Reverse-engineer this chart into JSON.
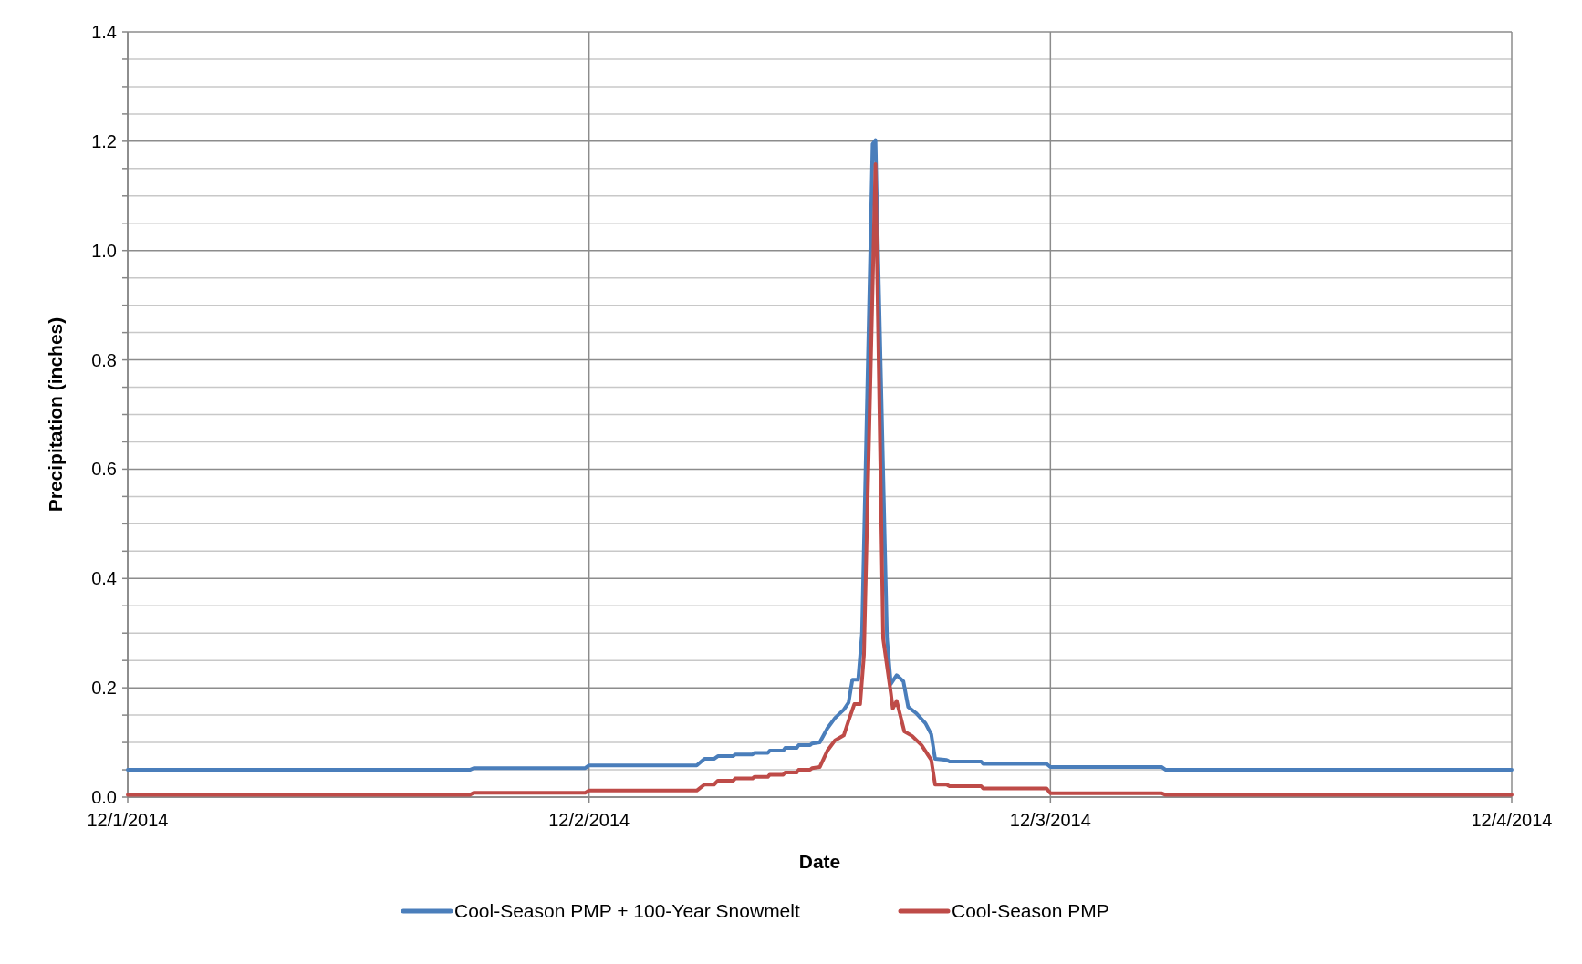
{
  "chart_data": {
    "type": "line",
    "xlabel": "Date",
    "ylabel": "Precipitation (inches)",
    "xlim": [
      "2014-12-01",
      "2014-12-04"
    ],
    "xticks": [
      {
        "value": "2014-12-01",
        "label": "12/1/2014"
      },
      {
        "value": "2014-12-02",
        "label": "12/2/2014"
      },
      {
        "value": "2014-12-03",
        "label": "12/3/2014"
      },
      {
        "value": "2014-12-04",
        "label": "12/4/2014"
      }
    ],
    "ylim": [
      0,
      1.4
    ],
    "yticks": [
      {
        "value": 0,
        "label": "0.0"
      },
      {
        "value": 0.05,
        "label": null
      },
      {
        "value": 0.1,
        "label": null
      },
      {
        "value": 0.15,
        "label": null
      },
      {
        "value": 0.2,
        "label": "0.2"
      },
      {
        "value": 0.25,
        "label": null
      },
      {
        "value": 0.3,
        "label": null
      },
      {
        "value": 0.35,
        "label": null
      },
      {
        "value": 0.4,
        "label": "0.4"
      },
      {
        "value": 0.45,
        "label": null
      },
      {
        "value": 0.5,
        "label": null
      },
      {
        "value": 0.55,
        "label": null
      },
      {
        "value": 0.6,
        "label": "0.6"
      },
      {
        "value": 0.65,
        "label": null
      },
      {
        "value": 0.7,
        "label": null
      },
      {
        "value": 0.75,
        "label": null
      },
      {
        "value": 0.8,
        "label": "0.8"
      },
      {
        "value": 0.85,
        "label": null
      },
      {
        "value": 0.9,
        "label": null
      },
      {
        "value": 0.95,
        "label": null
      },
      {
        "value": 1.0,
        "label": "1.0"
      },
      {
        "value": 1.05,
        "label": null
      },
      {
        "value": 1.1,
        "label": null
      },
      {
        "value": 1.15,
        "label": null
      },
      {
        "value": 1.2,
        "label": "1.2"
      },
      {
        "value": 1.25,
        "label": null
      },
      {
        "value": 1.3,
        "label": null
      },
      {
        "value": 1.35,
        "label": null
      },
      {
        "value": 1.4,
        "label": "1.4"
      }
    ],
    "grid": true,
    "legend": "bottom",
    "marker": "none",
    "line_style": "solid",
    "series": [
      {
        "name": "Cool-Season PMP + 100-Year Snowmelt",
        "color": "#4a7ebb",
        "x": [
          "2014-12-01T00:00",
          "2014-12-01T17:48",
          "2014-12-01T18:00",
          "2014-12-01T23:48",
          "2014-12-02T00:00",
          "2014-12-02T05:36",
          "2014-12-02T06:00",
          "2014-12-02T06:30",
          "2014-12-02T06:42",
          "2014-12-02T07:30",
          "2014-12-02T07:36",
          "2014-12-02T08:30",
          "2014-12-02T08:36",
          "2014-12-02T09:18",
          "2014-12-02T09:24",
          "2014-12-02T10:06",
          "2014-12-02T10:12",
          "2014-12-02T10:48",
          "2014-12-02T10:54",
          "2014-12-02T11:30",
          "2014-12-02T11:36",
          "2014-12-02T12:00",
          "2014-12-02T12:24",
          "2014-12-02T12:48",
          "2014-12-02T13:15",
          "2014-12-02T13:30",
          "2014-12-02T13:42",
          "2014-12-02T14:00",
          "2014-12-02T14:12",
          "2014-12-02T14:45",
          "2014-12-02T14:54",
          "2014-12-02T15:30",
          "2014-12-02T15:42",
          "2014-12-02T16:00",
          "2014-12-02T16:21",
          "2014-12-02T16:36",
          "2014-12-02T17:00",
          "2014-12-02T17:30",
          "2014-12-02T17:48",
          "2014-12-02T18:00",
          "2014-12-02T18:36",
          "2014-12-02T18:45",
          "2014-12-02T20:24",
          "2014-12-02T20:30",
          "2014-12-02T23:48",
          "2014-12-03T00:00",
          "2014-12-03T05:48",
          "2014-12-03T06:00",
          "2014-12-04T00:00"
        ],
        "values": [
          0.05,
          0.05,
          0.053,
          0.053,
          0.058,
          0.058,
          0.07,
          0.07,
          0.075,
          0.075,
          0.078,
          0.078,
          0.081,
          0.081,
          0.085,
          0.085,
          0.09,
          0.09,
          0.095,
          0.095,
          0.098,
          0.1,
          0.126,
          0.145,
          0.16,
          0.173,
          0.215,
          0.215,
          0.3,
          1.195,
          1.202,
          0.29,
          0.207,
          0.223,
          0.212,
          0.165,
          0.154,
          0.135,
          0.115,
          0.07,
          0.068,
          0.065,
          0.065,
          0.061,
          0.061,
          0.055,
          0.055,
          0.05,
          0.05
        ]
      },
      {
        "name": "Cool-Season PMP",
        "color": "#be4b48",
        "x": [
          "2014-12-01T00:00",
          "2014-12-01T17:48",
          "2014-12-01T18:00",
          "2014-12-01T23:48",
          "2014-12-02T00:00",
          "2014-12-02T05:36",
          "2014-12-02T06:00",
          "2014-12-02T06:30",
          "2014-12-02T06:42",
          "2014-12-02T07:30",
          "2014-12-02T07:36",
          "2014-12-02T08:30",
          "2014-12-02T08:36",
          "2014-12-02T09:18",
          "2014-12-02T09:24",
          "2014-12-02T10:06",
          "2014-12-02T10:12",
          "2014-12-02T10:48",
          "2014-12-02T10:54",
          "2014-12-02T11:30",
          "2014-12-02T11:36",
          "2014-12-02T12:00",
          "2014-12-02T12:24",
          "2014-12-02T12:48",
          "2014-12-02T13:15",
          "2014-12-02T13:30",
          "2014-12-02T13:48",
          "2014-12-02T14:06",
          "2014-12-02T14:18",
          "2014-12-02T14:54",
          "2014-12-02T15:18",
          "2014-12-02T15:42",
          "2014-12-02T15:48",
          "2014-12-02T16:00",
          "2014-12-02T16:24",
          "2014-12-02T16:48",
          "2014-12-02T17:18",
          "2014-12-02T17:48",
          "2014-12-02T18:00",
          "2014-12-02T18:36",
          "2014-12-02T18:45",
          "2014-12-02T20:24",
          "2014-12-02T20:30",
          "2014-12-02T23:48",
          "2014-12-03T00:00",
          "2014-12-03T05:48",
          "2014-12-03T06:00",
          "2014-12-04T00:00"
        ],
        "values": [
          0.004,
          0.004,
          0.008,
          0.008,
          0.012,
          0.012,
          0.023,
          0.023,
          0.03,
          0.03,
          0.034,
          0.034,
          0.037,
          0.037,
          0.041,
          0.041,
          0.045,
          0.045,
          0.05,
          0.05,
          0.053,
          0.055,
          0.085,
          0.104,
          0.113,
          0.14,
          0.17,
          0.17,
          0.26,
          1.158,
          0.29,
          0.19,
          0.162,
          0.176,
          0.12,
          0.112,
          0.095,
          0.068,
          0.023,
          0.023,
          0.02,
          0.02,
          0.016,
          0.016,
          0.007,
          0.007,
          0.004,
          0.004
        ]
      }
    ]
  }
}
